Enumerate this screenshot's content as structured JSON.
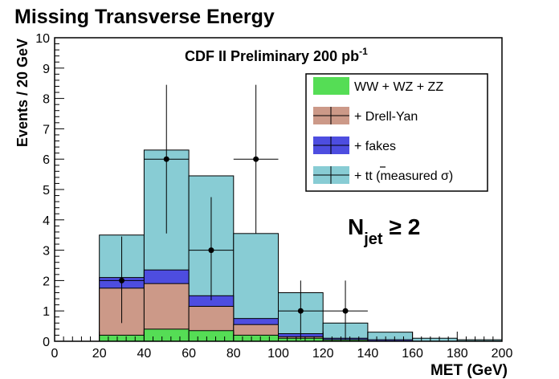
{
  "chart_data": {
    "type": "bar",
    "subtype": "stacked-histogram",
    "title": "Missing Transverse Energy",
    "annotation": "CDF II Preliminary  200 pb",
    "annotation_sup": "-1",
    "region_label_main": "N",
    "region_label_sub": "jet",
    "region_label_rel": "≥ 2",
    "xlabel": "MET (GeV)",
    "ylabel": "Events / 20 GeV",
    "xlim": [
      0,
      200
    ],
    "ylim": [
      0,
      10
    ],
    "xticks": [
      "0",
      "20",
      "40",
      "60",
      "80",
      "100",
      "120",
      "140",
      "160",
      "180",
      "200"
    ],
    "yticks": [
      "0",
      "1",
      "2",
      "3",
      "4",
      "5",
      "6",
      "7",
      "8",
      "9",
      "10"
    ],
    "grid": false,
    "legend_position": "top-right",
    "bin_edges": [
      0,
      20,
      40,
      60,
      80,
      100,
      120,
      140,
      160,
      180,
      200
    ],
    "series": [
      {
        "name": "WW + WZ + ZZ",
        "color": "#55dd55",
        "values": [
          0,
          0.2,
          0.4,
          0.35,
          0.2,
          0.1,
          0.05,
          0,
          0,
          0
        ]
      },
      {
        "name": "+ Drell-Yan",
        "color": "#cc9988",
        "values": [
          0,
          1.75,
          1.9,
          1.15,
          0.55,
          0.15,
          0.05,
          0,
          0,
          0
        ]
      },
      {
        "name": "+ fakes",
        "color": "#4d4de0",
        "values": [
          0,
          2.1,
          2.35,
          1.5,
          0.75,
          0.25,
          0.1,
          0.05,
          0,
          0
        ]
      },
      {
        "name": "+ t",
        "name_suffix": " (measured  σ)",
        "color": "#88ccd4",
        "values": [
          0,
          3.5,
          6.3,
          5.45,
          3.55,
          1.6,
          0.6,
          0.3,
          0.1,
          0.05
        ]
      }
    ],
    "data_points": {
      "x": [
        30,
        50,
        70,
        90,
        110,
        130
      ],
      "y": [
        2,
        6,
        3,
        6,
        1,
        1
      ],
      "y_low": [
        0.6,
        3.55,
        1.35,
        3.55,
        0.05,
        0.05
      ],
      "y_high": [
        3.45,
        8.45,
        4.75,
        8.45,
        2.0,
        2.0
      ],
      "x_half_width": 10
    }
  }
}
